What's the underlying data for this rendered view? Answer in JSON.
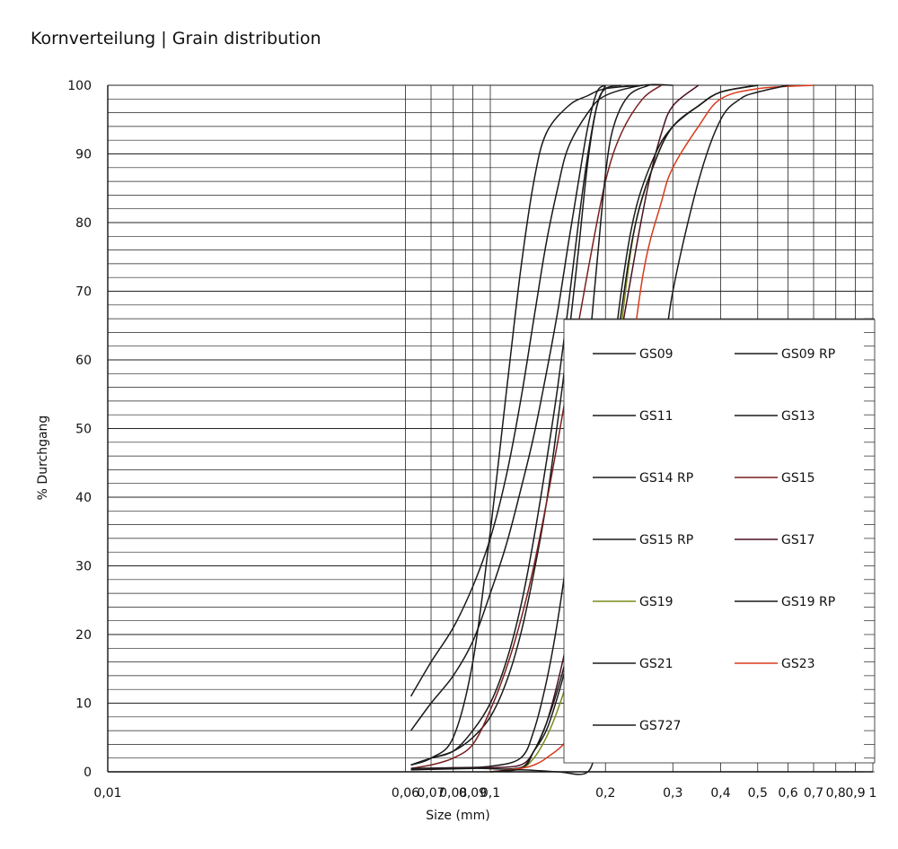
{
  "page_title": "Kornverteilung | Grain distribution",
  "chart_data": {
    "type": "line",
    "title": "Kornverteilung | Grain distribution",
    "xlabel": "Size (mm)",
    "ylabel": "% Durchgang",
    "x_scale": "log",
    "xlim": [
      0.01,
      1
    ],
    "ylim": [
      0,
      100
    ],
    "x_tick_labels": [
      "0,01",
      "0,06",
      "0,07",
      "0,08",
      "0,09",
      "0,1",
      "0,2",
      "0,3",
      "0,4",
      "0,5",
      "0,6",
      "0,7",
      "0,8",
      "0,9",
      "1"
    ],
    "x_tick_values": [
      0.01,
      0.06,
      0.07,
      0.08,
      0.09,
      0.1,
      0.2,
      0.3,
      0.4,
      0.5,
      0.6,
      0.7,
      0.8,
      0.9,
      1
    ],
    "y_tick_labels": [
      "0",
      "10",
      "20",
      "30",
      "40",
      "50",
      "60",
      "70",
      "80",
      "90",
      "100"
    ],
    "y_tick_values": [
      0,
      10,
      20,
      30,
      40,
      50,
      60,
      70,
      80,
      90,
      100
    ],
    "grid": true,
    "legend_position": "bottom-right",
    "series": [
      {
        "name": "GS09",
        "color": "#1a1a1a",
        "points": [
          [
            0.062,
            11
          ],
          [
            0.07,
            16
          ],
          [
            0.08,
            21
          ],
          [
            0.09,
            27
          ],
          [
            0.1,
            34
          ],
          [
            0.11,
            43
          ],
          [
            0.12,
            54
          ],
          [
            0.13,
            66
          ],
          [
            0.14,
            77
          ],
          [
            0.15,
            85
          ],
          [
            0.16,
            91
          ],
          [
            0.18,
            96
          ],
          [
            0.2,
            98.5
          ],
          [
            0.25,
            100
          ],
          [
            0.3,
            100
          ]
        ]
      },
      {
        "name": "GS09 RP",
        "color": "#1a1a1a",
        "points": [
          [
            0.062,
            1
          ],
          [
            0.07,
            2
          ],
          [
            0.08,
            5
          ],
          [
            0.09,
            16
          ],
          [
            0.1,
            35
          ],
          [
            0.11,
            55
          ],
          [
            0.12,
            73
          ],
          [
            0.13,
            86
          ],
          [
            0.14,
            93
          ],
          [
            0.16,
            97
          ],
          [
            0.18,
            98.5
          ],
          [
            0.2,
            99.5
          ],
          [
            0.25,
            100
          ]
        ]
      },
      {
        "name": "GS11",
        "color": "#1a1a1a",
        "points": [
          [
            0.062,
            6
          ],
          [
            0.07,
            10
          ],
          [
            0.08,
            14
          ],
          [
            0.09,
            19
          ],
          [
            0.1,
            26
          ],
          [
            0.11,
            33
          ],
          [
            0.12,
            41
          ],
          [
            0.13,
            49
          ],
          [
            0.14,
            58
          ],
          [
            0.15,
            67
          ],
          [
            0.16,
            77
          ],
          [
            0.17,
            86
          ],
          [
            0.18,
            94
          ],
          [
            0.19,
            99
          ],
          [
            0.2,
            100
          ]
        ]
      },
      {
        "name": "GS13",
        "color": "#1a1a1a",
        "points": [
          [
            0.062,
            1
          ],
          [
            0.07,
            2
          ],
          [
            0.08,
            3
          ],
          [
            0.09,
            5
          ],
          [
            0.1,
            8
          ],
          [
            0.11,
            13
          ],
          [
            0.12,
            20
          ],
          [
            0.13,
            29
          ],
          [
            0.14,
            39
          ],
          [
            0.15,
            51
          ],
          [
            0.16,
            63
          ],
          [
            0.17,
            76
          ],
          [
            0.18,
            89
          ],
          [
            0.19,
            97
          ],
          [
            0.2,
            99.5
          ],
          [
            0.22,
            100
          ]
        ]
      },
      {
        "name": "GS14 RP",
        "color": "#1a1a1a",
        "points": [
          [
            0.062,
            1
          ],
          [
            0.07,
            2
          ],
          [
            0.08,
            3
          ],
          [
            0.09,
            6
          ],
          [
            0.1,
            10
          ],
          [
            0.11,
            16
          ],
          [
            0.12,
            24
          ],
          [
            0.13,
            34
          ],
          [
            0.14,
            45
          ],
          [
            0.15,
            56
          ],
          [
            0.16,
            68
          ],
          [
            0.17,
            80
          ],
          [
            0.18,
            90
          ],
          [
            0.19,
            97
          ],
          [
            0.2,
            100
          ]
        ]
      },
      {
        "name": "GS15",
        "color": "#7a1f1f",
        "points": [
          [
            0.062,
            0.5
          ],
          [
            0.07,
            1
          ],
          [
            0.08,
            2
          ],
          [
            0.09,
            4
          ],
          [
            0.1,
            9
          ],
          [
            0.11,
            15
          ],
          [
            0.12,
            22
          ],
          [
            0.13,
            30
          ],
          [
            0.14,
            39
          ],
          [
            0.15,
            48
          ],
          [
            0.16,
            57
          ],
          [
            0.18,
            73
          ],
          [
            0.2,
            86
          ],
          [
            0.22,
            93
          ],
          [
            0.25,
            98
          ],
          [
            0.28,
            100
          ]
        ]
      },
      {
        "name": "GS15 RP",
        "color": "#1a1a1a",
        "points": [
          [
            0.062,
            0.5
          ],
          [
            0.08,
            0.6
          ],
          [
            0.1,
            0.8
          ],
          [
            0.12,
            2
          ],
          [
            0.13,
            6
          ],
          [
            0.14,
            13
          ],
          [
            0.15,
            22
          ],
          [
            0.16,
            33
          ],
          [
            0.17,
            46
          ],
          [
            0.18,
            60
          ],
          [
            0.19,
            74
          ],
          [
            0.2,
            87
          ],
          [
            0.21,
            94
          ],
          [
            0.23,
            98.5
          ],
          [
            0.26,
            100
          ]
        ]
      },
      {
        "name": "GS17",
        "color": "#4a1020",
        "points": [
          [
            0.062,
            0.3
          ],
          [
            0.08,
            0.5
          ],
          [
            0.1,
            0.6
          ],
          [
            0.12,
            1
          ],
          [
            0.13,
            3
          ],
          [
            0.14,
            7
          ],
          [
            0.15,
            13
          ],
          [
            0.16,
            20
          ],
          [
            0.18,
            35
          ],
          [
            0.2,
            50
          ],
          [
            0.22,
            64
          ],
          [
            0.24,
            76
          ],
          [
            0.26,
            86
          ],
          [
            0.28,
            93
          ],
          [
            0.3,
            97
          ],
          [
            0.35,
            100
          ]
        ]
      },
      {
        "name": "GS19",
        "color": "#7a8a1a",
        "points": [
          [
            0.1,
            0
          ],
          [
            0.12,
            0.5
          ],
          [
            0.13,
            2
          ],
          [
            0.14,
            5
          ],
          [
            0.15,
            9
          ],
          [
            0.16,
            14
          ],
          [
            0.18,
            26
          ],
          [
            0.2,
            44
          ],
          [
            0.22,
            65
          ],
          [
            0.24,
            80
          ],
          [
            0.27,
            89
          ],
          [
            0.3,
            94
          ],
          [
            0.35,
            97
          ],
          [
            0.4,
            99
          ],
          [
            0.5,
            100
          ]
        ]
      },
      {
        "name": "GS19 RP",
        "color": "#1a1a1a",
        "points": [
          [
            0.1,
            0
          ],
          [
            0.12,
            0.5
          ],
          [
            0.13,
            3
          ],
          [
            0.14,
            7
          ],
          [
            0.15,
            12
          ],
          [
            0.16,
            18
          ],
          [
            0.18,
            32
          ],
          [
            0.2,
            51
          ],
          [
            0.22,
            70
          ],
          [
            0.24,
            82
          ],
          [
            0.27,
            90
          ],
          [
            0.3,
            94
          ],
          [
            0.35,
            97
          ],
          [
            0.4,
            99
          ],
          [
            0.5,
            100
          ]
        ]
      },
      {
        "name": "GS21",
        "color": "#1a1a1a",
        "points": [
          [
            0.062,
            0.3
          ],
          [
            0.09,
            0.5
          ],
          [
            0.12,
            0.6
          ],
          [
            0.13,
            3
          ],
          [
            0.14,
            6
          ],
          [
            0.15,
            11
          ],
          [
            0.16,
            17
          ],
          [
            0.18,
            31
          ],
          [
            0.2,
            48
          ],
          [
            0.22,
            67
          ],
          [
            0.24,
            80
          ],
          [
            0.27,
            89
          ],
          [
            0.3,
            94
          ],
          [
            0.35,
            97
          ],
          [
            0.4,
            99
          ],
          [
            0.5,
            100
          ]
        ]
      },
      {
        "name": "GS23",
        "color": "#d83a1a",
        "points": [
          [
            0.1,
            0
          ],
          [
            0.12,
            0.5
          ],
          [
            0.13,
            1
          ],
          [
            0.14,
            2
          ],
          [
            0.16,
            5
          ],
          [
            0.18,
            12
          ],
          [
            0.2,
            29
          ],
          [
            0.22,
            48
          ],
          [
            0.25,
            72
          ],
          [
            0.28,
            83
          ],
          [
            0.3,
            88
          ],
          [
            0.35,
            94
          ],
          [
            0.4,
            98
          ],
          [
            0.5,
            99.5
          ],
          [
            0.7,
            100
          ]
        ]
      },
      {
        "name": "GS727",
        "color": "#1a1a1a",
        "points": [
          [
            0.1,
            0
          ],
          [
            0.12,
            0.3
          ],
          [
            0.15,
            0
          ],
          [
            0.18,
            0
          ],
          [
            0.19,
            5
          ],
          [
            0.2,
            12
          ],
          [
            0.22,
            25
          ],
          [
            0.25,
            42
          ],
          [
            0.28,
            58
          ],
          [
            0.3,
            70
          ],
          [
            0.35,
            86
          ],
          [
            0.4,
            95
          ],
          [
            0.45,
            98
          ],
          [
            0.5,
            99
          ],
          [
            0.6,
            100
          ]
        ]
      }
    ]
  }
}
